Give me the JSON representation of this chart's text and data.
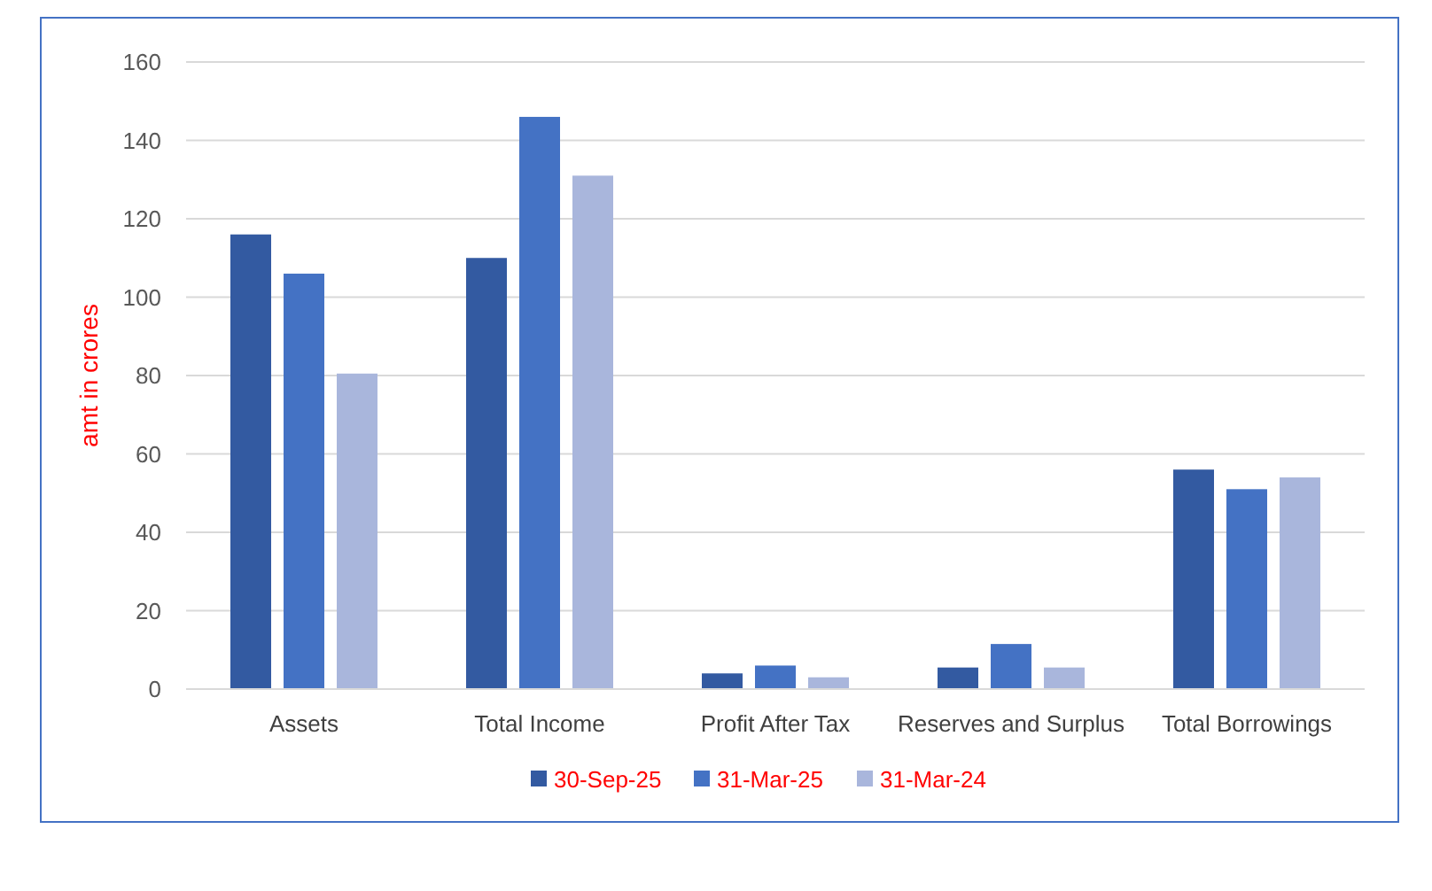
{
  "chart_data": {
    "type": "bar",
    "ylabel": "amt in crores",
    "categories": [
      "Assets",
      "Total Income",
      "Profit After Tax",
      "Reserves and Surplus",
      "Total Borrowings"
    ],
    "series": [
      {
        "name": "30-Sep-25",
        "color": "#335aa1",
        "values": [
          116,
          110,
          4,
          5.5,
          56
        ]
      },
      {
        "name": "31-Mar-25",
        "color": "#4472c4",
        "values": [
          106,
          146,
          6,
          11.5,
          51
        ]
      },
      {
        "name": "31-Mar-24",
        "color": "#a9b6dc",
        "values": [
          80.5,
          131,
          3,
          5.5,
          54
        ]
      }
    ],
    "ylim": [
      0,
      160
    ],
    "yticks": [
      0,
      20,
      40,
      60,
      80,
      100,
      120,
      140,
      160
    ],
    "grid": "y",
    "legend": "bottom"
  }
}
